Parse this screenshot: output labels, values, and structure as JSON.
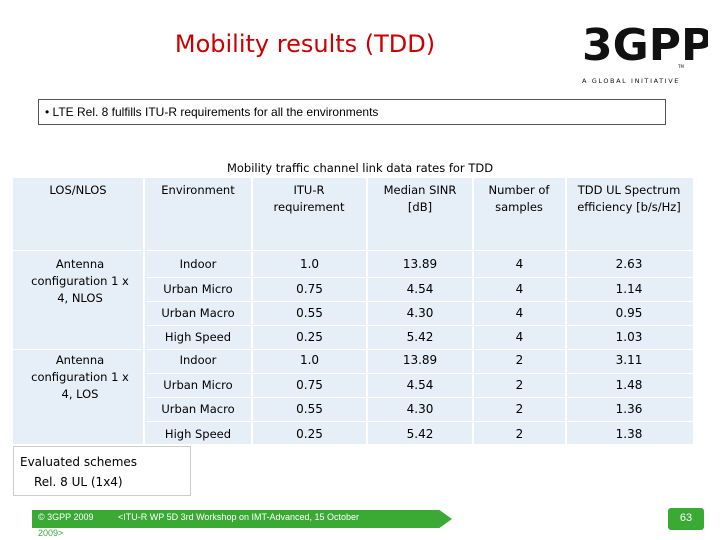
{
  "slide": {
    "title": "Mobility results (TDD)",
    "bullet": "• LTE Rel. 8 fulfills ITU-R requirements for all the environments",
    "caption": "Mobility traffic channel link data rates for TDD"
  },
  "logo": {
    "text": "3GPP",
    "tagline": "A GLOBAL INITIATIVE",
    "tm": "TM"
  },
  "table": {
    "headers": [
      "LOS/NLOS",
      "Environment",
      "ITU-R requirement",
      "Median SINR [dB]",
      "Number of samples",
      "TDD UL Spectrum efficiency [b/s/Hz]"
    ],
    "groups": [
      {
        "label": "Antenna configuration 1 x 4, NLOS",
        "rows": [
          [
            "Indoor",
            "1.0",
            "13.89",
            "4",
            "2.63"
          ],
          [
            "Urban Micro",
            "0.75",
            "4.54",
            "4",
            "1.14"
          ],
          [
            "Urban Macro",
            "0.55",
            "4.30",
            "4",
            "0.95"
          ],
          [
            "High Speed",
            "0.25",
            "5.42",
            "4",
            "1.03"
          ]
        ]
      },
      {
        "label": "Antenna configuration 1 x 4, LOS",
        "rows": [
          [
            "Indoor",
            "1.0",
            "13.89",
            "2",
            "3.11"
          ],
          [
            "Urban Micro",
            "0.75",
            "4.54",
            "2",
            "1.48"
          ],
          [
            "Urban Macro",
            "0.55",
            "4.30",
            "2",
            "1.36"
          ],
          [
            "High Speed",
            "0.25",
            "5.42",
            "2",
            "1.38"
          ]
        ]
      }
    ]
  },
  "evaluated": {
    "line1": "Evaluated schemes",
    "line2": "Rel. 8 UL (1x4)"
  },
  "footer": {
    "copyright": "© 3GPP 2009",
    "event": "<ITU-R WP 5D 3rd Workshop on IMT-Advanced, 15 October",
    "event_cont": "2009>",
    "page": "63"
  },
  "colors": {
    "title": "#cc0000",
    "table_fill": "#e6eef7",
    "footer_green": "#3aaa35"
  }
}
